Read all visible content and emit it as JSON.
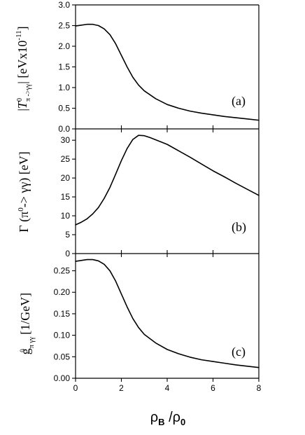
{
  "chart_data": [
    {
      "type": "line",
      "panel_label": "(a)",
      "ylabel": "|T π0->γγ| [eVx10-11]",
      "ylabel_parts": {
        "open_bar": "|",
        "symbol": "T",
        "superscript": "0",
        "subscript": "π ->γγ",
        "close_bar": "|",
        "unit_open": " [eVx10",
        "unit_exponent": "-11",
        "unit_close": "]"
      },
      "xlim": [
        0,
        8
      ],
      "ylim": [
        0.0,
        3.0
      ],
      "y_ticks": [
        0.0,
        0.5,
        1.0,
        1.5,
        2.0,
        2.5,
        3.0
      ],
      "y_tick_labels": [
        "0.0",
        "0.5",
        "1.0",
        "1.5",
        "2.0",
        "2.5",
        "3.0"
      ],
      "x": [
        0.0,
        0.25,
        0.5,
        0.75,
        1.0,
        1.25,
        1.5,
        1.75,
        2.0,
        2.25,
        2.5,
        2.75,
        3.0,
        3.5,
        4.0,
        4.5,
        5.0,
        5.5,
        6.0,
        6.5,
        7.0,
        7.5,
        8.0
      ],
      "values": [
        2.49,
        2.51,
        2.53,
        2.53,
        2.5,
        2.42,
        2.28,
        2.06,
        1.78,
        1.5,
        1.25,
        1.06,
        0.92,
        0.73,
        0.59,
        0.5,
        0.43,
        0.38,
        0.34,
        0.3,
        0.27,
        0.24,
        0.21
      ]
    },
    {
      "type": "line",
      "panel_label": "(b)",
      "ylabel": "Γ (π0-> γγ) [eV]",
      "ylabel_parts": {
        "prefix": "Γ (π",
        "superscript": "0",
        "suffix": "-> γγ) [eV]"
      },
      "xlim": [
        0,
        8
      ],
      "ylim": [
        0,
        33
      ],
      "y_ticks": [
        0,
        5,
        10,
        15,
        20,
        25,
        30
      ],
      "y_tick_labels": [
        "0",
        "5",
        "10",
        "15",
        "20",
        "25",
        "30"
      ],
      "x": [
        0.0,
        0.25,
        0.5,
        0.75,
        1.0,
        1.25,
        1.5,
        1.75,
        2.0,
        2.25,
        2.5,
        2.75,
        3.0,
        3.25,
        3.5,
        4.0,
        4.5,
        5.0,
        5.5,
        6.0,
        6.5,
        7.0,
        7.5,
        8.0
      ],
      "values": [
        7.6,
        8.3,
        9.2,
        10.5,
        12.2,
        14.6,
        17.5,
        21.0,
        24.6,
        27.8,
        30.2,
        31.3,
        31.2,
        30.7,
        30.1,
        28.9,
        27.2,
        25.5,
        23.7,
        21.9,
        20.3,
        18.6,
        17.0,
        15.4
      ]
    },
    {
      "type": "line",
      "panel_label": "(c)",
      "ylabel": "g π0γγ [1/GeV]",
      "ylabel_parts": {
        "symbol": "g",
        "subscript": "π γγ",
        "superscript": "0",
        "unit": " [1/GeV]"
      },
      "xlabel": "ρB /ρ0",
      "xlabel_parts": {
        "rho1": "ρ",
        "sub1": "B",
        "slash": " /",
        "rho2": "ρ",
        "sub2": "0"
      },
      "xlim": [
        0,
        8
      ],
      "ylim": [
        0.0,
        0.29
      ],
      "x_ticks": [
        0,
        2,
        4,
        6,
        8
      ],
      "x_tick_labels": [
        "0",
        "2",
        "4",
        "6",
        "8"
      ],
      "y_ticks": [
        0.0,
        0.05,
        0.1,
        0.15,
        0.2,
        0.25
      ],
      "y_tick_labels": [
        "0.00",
        "0.05",
        "0.10",
        "0.15",
        "0.20",
        "0.25"
      ],
      "x": [
        0.0,
        0.25,
        0.5,
        0.75,
        1.0,
        1.25,
        1.5,
        1.75,
        2.0,
        2.25,
        2.5,
        2.75,
        3.0,
        3.5,
        4.0,
        4.5,
        5.0,
        5.5,
        6.0,
        6.5,
        7.0,
        7.5,
        8.0
      ],
      "values": [
        0.272,
        0.274,
        0.276,
        0.276,
        0.273,
        0.265,
        0.25,
        0.226,
        0.196,
        0.166,
        0.139,
        0.118,
        0.102,
        0.082,
        0.067,
        0.057,
        0.049,
        0.043,
        0.039,
        0.035,
        0.031,
        0.028,
        0.025
      ]
    }
  ]
}
